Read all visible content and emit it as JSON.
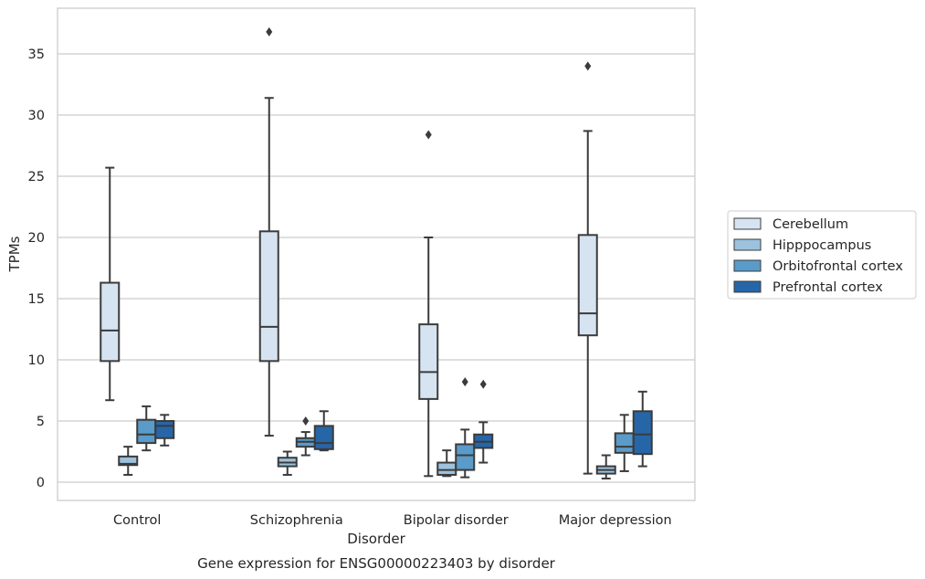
{
  "chart_data": {
    "type": "box",
    "title": "Gene expression for ENSG00000223403 by disorder",
    "xlabel": "Disorder",
    "ylabel": "TPMs",
    "ylim": [
      -1.5,
      38.5
    ],
    "yticks": [
      0,
      5,
      10,
      15,
      20,
      25,
      30,
      35
    ],
    "grid": "horizontal",
    "legend_position": "right",
    "categories": [
      "Control",
      "Schizophrenia",
      "Bipolar disorder",
      "Major depression"
    ],
    "series": [
      {
        "name": "Cerebellum",
        "color": "#d6e4f2",
        "boxes": [
          {
            "whisker_low": 6.7,
            "q1": 9.9,
            "median": 12.4,
            "q3": 16.3,
            "whisker_high": 25.7,
            "outliers": []
          },
          {
            "whisker_low": 3.8,
            "q1": 9.9,
            "median": 12.7,
            "q3": 20.5,
            "whisker_high": 31.4,
            "outliers": [
              36.8
            ]
          },
          {
            "whisker_low": 0.5,
            "q1": 6.8,
            "median": 9.0,
            "q3": 12.9,
            "whisker_high": 20.0,
            "outliers": [
              28.4
            ]
          },
          {
            "whisker_low": 0.7,
            "q1": 12.0,
            "median": 13.8,
            "q3": 20.2,
            "whisker_high": 28.7,
            "outliers": [
              34.0
            ]
          }
        ]
      },
      {
        "name": "Hipppocampus",
        "color": "#9cc2dd",
        "boxes": [
          {
            "whisker_low": 0.6,
            "q1": 1.4,
            "median": 1.5,
            "q3": 2.1,
            "whisker_high": 2.9,
            "outliers": []
          },
          {
            "whisker_low": 0.6,
            "q1": 1.3,
            "median": 1.6,
            "q3": 2.0,
            "whisker_high": 2.5,
            "outliers": []
          },
          {
            "whisker_low": 0.5,
            "q1": 0.6,
            "median": 1.0,
            "q3": 1.6,
            "whisker_high": 2.6,
            "outliers": []
          },
          {
            "whisker_low": 0.3,
            "q1": 0.7,
            "median": 1.0,
            "q3": 1.3,
            "whisker_high": 2.2,
            "outliers": []
          }
        ]
      },
      {
        "name": "Orbitofrontal cortex",
        "color": "#5a9bc9",
        "boxes": [
          {
            "whisker_low": 2.6,
            "q1": 3.2,
            "median": 3.9,
            "q3": 5.1,
            "whisker_high": 6.2,
            "outliers": []
          },
          {
            "whisker_low": 2.2,
            "q1": 2.9,
            "median": 3.3,
            "q3": 3.6,
            "whisker_high": 4.1,
            "outliers": [
              5.0
            ]
          },
          {
            "whisker_low": 0.4,
            "q1": 1.0,
            "median": 2.2,
            "q3": 3.1,
            "whisker_high": 4.3,
            "outliers": [
              8.2
            ]
          },
          {
            "whisker_low": 0.9,
            "q1": 2.4,
            "median": 2.9,
            "q3": 4.0,
            "whisker_high": 5.5,
            "outliers": []
          }
        ]
      },
      {
        "name": "Prefrontal cortex",
        "color": "#2666a8",
        "boxes": [
          {
            "whisker_low": 3.0,
            "q1": 3.6,
            "median": 4.6,
            "q3": 5.0,
            "whisker_high": 5.5,
            "outliers": []
          },
          {
            "whisker_low": 2.6,
            "q1": 2.7,
            "median": 3.2,
            "q3": 4.6,
            "whisker_high": 5.8,
            "outliers": []
          },
          {
            "whisker_low": 1.6,
            "q1": 2.8,
            "median": 3.3,
            "q3": 3.9,
            "whisker_high": 4.9,
            "outliers": [
              8.0
            ]
          },
          {
            "whisker_low": 1.3,
            "q1": 2.3,
            "median": 3.9,
            "q3": 5.8,
            "whisker_high": 7.4,
            "outliers": []
          }
        ]
      }
    ]
  }
}
